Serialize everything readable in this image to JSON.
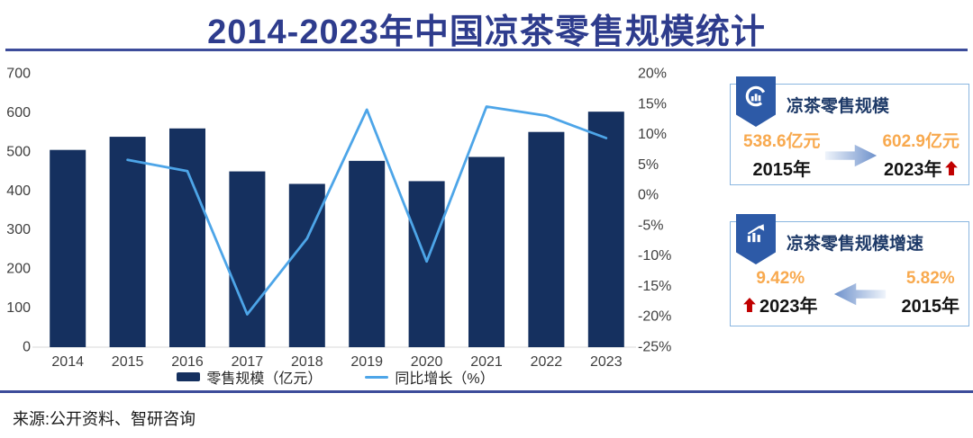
{
  "title": "2014-2023年中国凉茶零售规模统计",
  "source": "来源:公开资料、智研咨询",
  "chart_data": {
    "type": "bar",
    "subtype": "bar+line combo, dual axis",
    "categories": [
      "2014",
      "2015",
      "2016",
      "2017",
      "2018",
      "2019",
      "2020",
      "2021",
      "2022",
      "2023"
    ],
    "series": [
      {
        "name": "零售规模（亿元）",
        "type": "bar",
        "axis": "left",
        "values": [
          505,
          538.6,
          560,
          450,
          418,
          477,
          425,
          487,
          551,
          602.9
        ]
      },
      {
        "name": "同比增长（%）",
        "type": "line",
        "axis": "right",
        "values": [
          null,
          5.82,
          3.97,
          -19.6,
          -7.1,
          14.1,
          -10.9,
          14.6,
          13.1,
          9.42
        ]
      }
    ],
    "left_axis": {
      "min": 0,
      "max": 700,
      "ticks": [
        700,
        600,
        500,
        400,
        300,
        200,
        100,
        0
      ]
    },
    "right_axis": {
      "min": -25,
      "max": 20,
      "suffix": "%",
      "ticks": [
        20,
        15,
        10,
        5,
        0,
        -5,
        -10,
        -15,
        -20,
        -25
      ]
    },
    "legend": [
      "零售规模（亿元）",
      "同比增长（%）"
    ],
    "grid": false,
    "legend_position": "bottom-center"
  },
  "cards": [
    {
      "title": "凉茶零售规模",
      "icon": "donut-chart-icon",
      "arrow": "right",
      "start": {
        "value": "538.6亿元",
        "year": "2015年"
      },
      "end": {
        "value": "602.9亿元",
        "year": "2023年",
        "trend": "up"
      }
    },
    {
      "title": "凉茶零售规模增速",
      "icon": "trend-up-icon",
      "arrow": "left",
      "end": {
        "value": "9.42%",
        "year": "2023年",
        "trend": "up"
      },
      "start": {
        "value": "5.82%",
        "year": "2015年"
      }
    }
  ],
  "colors": {
    "bar": "#15305F",
    "line": "#4DA5E8",
    "title": "#2E3C8D",
    "divider": "#3C4C9A",
    "accent_orange": "#F8A94E",
    "trend_red": "#C00000",
    "card_border": "#8AB6E0",
    "badge_blue": "#2D5AA7",
    "card_title_navy": "#1E3A68",
    "axis_text": "#3F3F3F",
    "baseline": "#D9D9D9"
  }
}
